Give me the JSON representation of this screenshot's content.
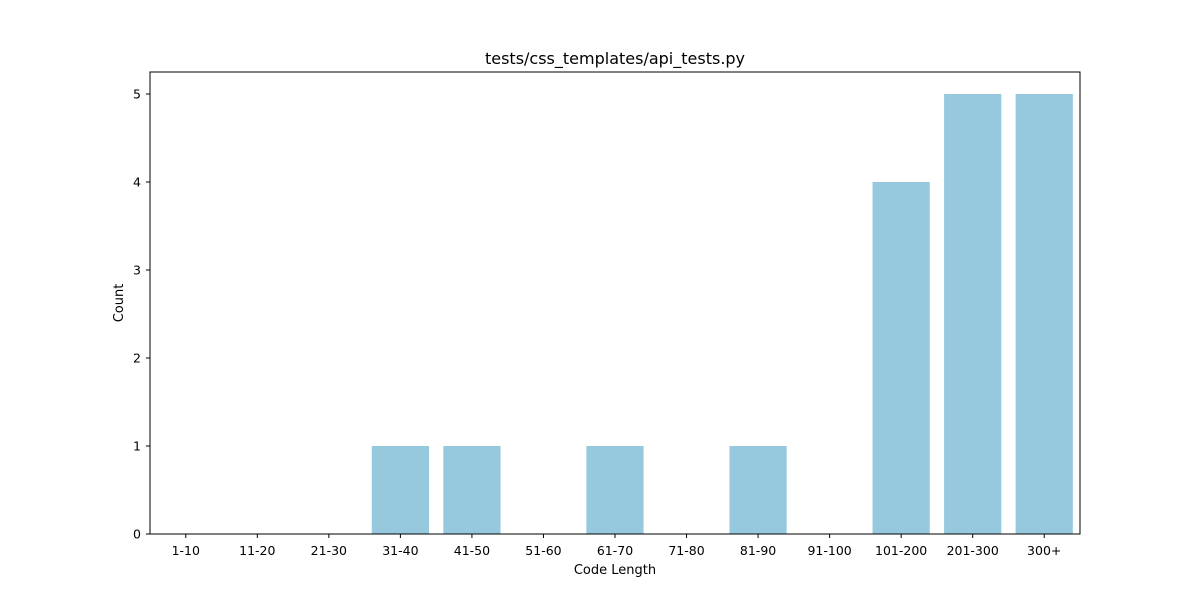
{
  "chart_data": {
    "type": "bar",
    "title": "tests/css_templates/api_tests.py",
    "xlabel": "Code Length",
    "ylabel": "Count",
    "categories": [
      "1-10",
      "11-20",
      "21-30",
      "31-40",
      "41-50",
      "51-60",
      "61-70",
      "71-80",
      "81-90",
      "91-100",
      "101-200",
      "201-300",
      "300+"
    ],
    "values": [
      0,
      0,
      0,
      1,
      1,
      0,
      1,
      0,
      1,
      0,
      4,
      5,
      5
    ],
    "ylim": [
      0,
      5.25
    ],
    "yticks": [
      0,
      1,
      2,
      3,
      4,
      5
    ],
    "bar_color": "#96c9de",
    "grid": false,
    "legend": "none"
  }
}
